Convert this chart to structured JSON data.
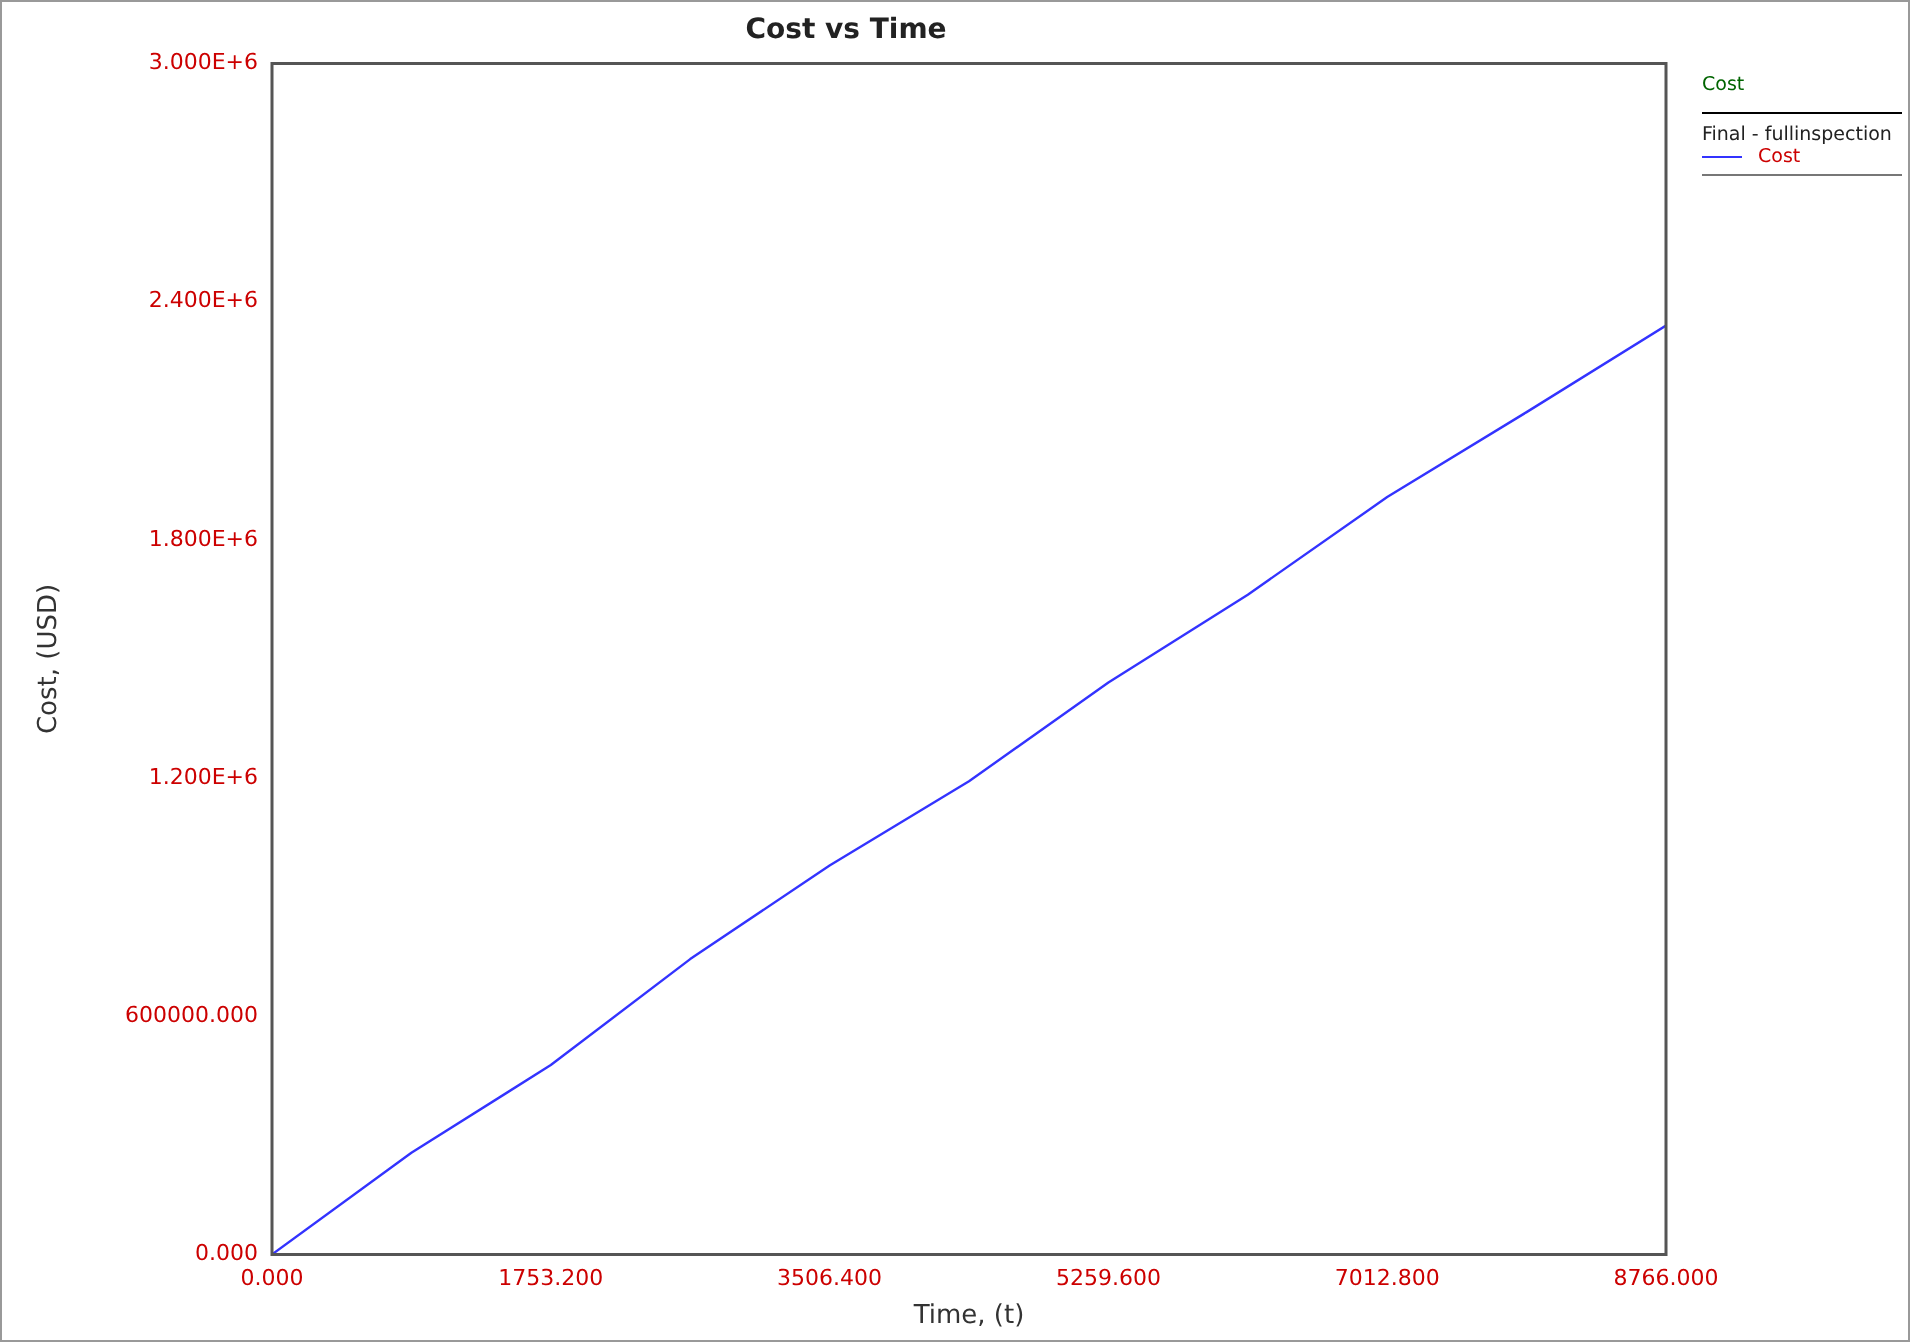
{
  "chart_data": {
    "type": "line",
    "title": "Cost vs Time",
    "xlabel": "Time, (t)",
    "ylabel": "Cost, (USD)",
    "legend_title": "Cost",
    "annotations": [
      "Final - fullinspection"
    ],
    "x": [
      0,
      876.6,
      1753.2,
      2629.8,
      3506.4,
      4383,
      5259.6,
      6136.2,
      7012.8,
      7889.4,
      8766
    ],
    "series": [
      {
        "name": "Cost",
        "color": "#3333ff",
        "values": [
          0,
          256000,
          477000,
          744000,
          980000,
          1192000,
          1441000,
          1662000,
          1908000,
          2122000,
          2340000
        ]
      }
    ],
    "xlim": [
      0,
      8766
    ],
    "xticks": [
      {
        "value": 0,
        "label": "0.000"
      },
      {
        "value": 1753.2,
        "label": "1753.200"
      },
      {
        "value": 3506.4,
        "label": "3506.400"
      },
      {
        "value": 5259.6,
        "label": "5259.600"
      },
      {
        "value": 7012.8,
        "label": "7012.800"
      },
      {
        "value": 8766,
        "label": "8766.000"
      }
    ],
    "ylim": [
      0,
      3000000
    ],
    "yticks": [
      {
        "value": 0,
        "label": "0.000"
      },
      {
        "value": 600000,
        "label": "600000.000"
      },
      {
        "value": 1200000,
        "label": "1.200E+6"
      },
      {
        "value": 1800000,
        "label": "1.800E+6"
      },
      {
        "value": 2400000,
        "label": "2.400E+6"
      },
      {
        "value": 3000000,
        "label": "3.000E+6"
      }
    ],
    "grid": false,
    "legend": "top right",
    "marker": "none",
    "line_style": "solid"
  }
}
